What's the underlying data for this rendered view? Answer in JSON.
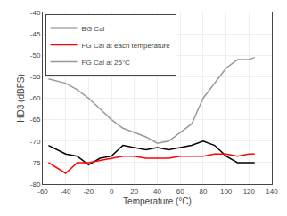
{
  "chart_data": {
    "type": "line",
    "xlabel": "Temperature (°C)",
    "ylabel": "HD3 (dBFS)",
    "xlim": [
      -60,
      140
    ],
    "ylim": [
      -80,
      -40
    ],
    "xticks": [
      -60,
      -40,
      -20,
      0,
      20,
      40,
      60,
      80,
      100,
      120,
      140
    ],
    "yticks": [
      -80,
      -75,
      -70,
      -65,
      -60,
      -55,
      -50,
      -45,
      -40
    ],
    "x": [
      -55,
      -40,
      -30,
      -20,
      -10,
      0,
      10,
      20,
      30,
      40,
      50,
      60,
      70,
      80,
      90,
      100,
      110,
      120,
      125
    ],
    "series": [
      {
        "name": "BG Cal",
        "color": "#000000",
        "values": [
          -71,
          -73,
          -73.5,
          -75.5,
          -74,
          -73.5,
          -71,
          -71.5,
          -72,
          -71.5,
          -72,
          -71.5,
          -71,
          -70,
          -71,
          -73.5,
          -75,
          -75,
          -75
        ]
      },
      {
        "name": "FG Cal at each temperature",
        "color": "#ff0000",
        "values": [
          -75,
          -77.5,
          -75,
          -75,
          -74.5,
          -74,
          -73.5,
          -73.5,
          -74,
          -74,
          -74,
          -73.5,
          -73.5,
          -73.5,
          -73,
          -73,
          -73.5,
          -73,
          -73
        ]
      },
      {
        "name": "FG Cal at 25°C",
        "color": "#999999",
        "values": [
          -55.5,
          -56.5,
          -58,
          -60,
          -62.5,
          -65,
          -67,
          -68,
          -69,
          -70.5,
          -70,
          -68,
          -66,
          -60,
          -56.5,
          -53,
          -51,
          -51,
          -50.5
        ]
      }
    ],
    "grid": true,
    "legend": "upper left"
  }
}
